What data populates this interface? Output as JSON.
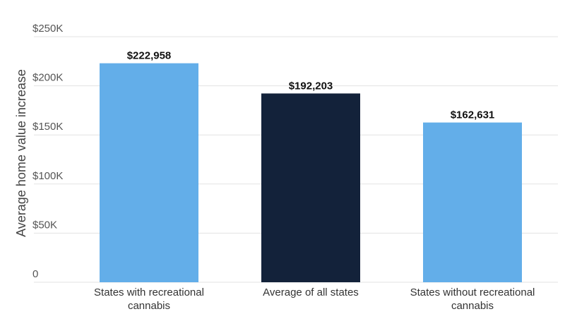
{
  "chart_data": {
    "type": "bar",
    "categories": [
      [
        "States with recreational",
        "cannabis"
      ],
      [
        "Average of all states"
      ],
      [
        "States without recreational",
        "cannabis"
      ]
    ],
    "values": [
      222958,
      192203,
      162631
    ],
    "value_labels": [
      "$222,958",
      "$192,203",
      "$162,631"
    ],
    "bar_colors": [
      "#63aee9",
      "#13223a",
      "#63aee9"
    ],
    "ylabel": "Average home value increase",
    "yticks": [
      0,
      50000,
      100000,
      150000,
      200000,
      250000
    ],
    "ytick_labels": [
      "0",
      "$50K",
      "$100K",
      "$150K",
      "$200K",
      "$250K"
    ],
    "ylim": [
      0,
      250000
    ],
    "grid": true,
    "grid_color": "#e3e3e3"
  }
}
